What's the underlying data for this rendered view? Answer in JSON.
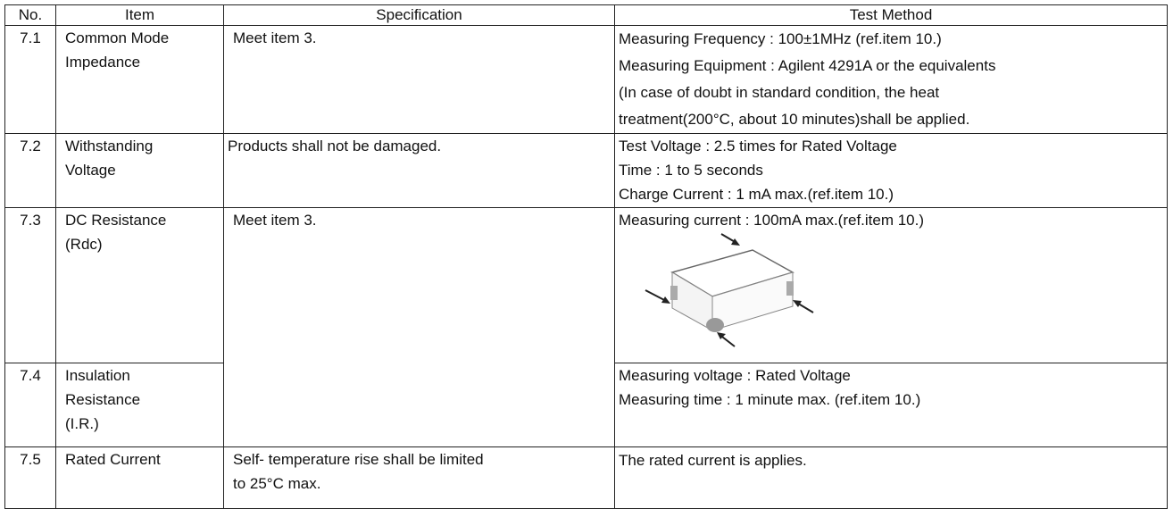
{
  "table": {
    "header": [
      "No.",
      "Item",
      "Specification",
      "Test Method"
    ],
    "rows": [
      {
        "no": "7.1",
        "item": [
          "Common Mode",
          "Impedance"
        ],
        "specification": [
          "Meet item 3."
        ],
        "method": [
          "Measuring Frequency : 100±1MHz    (ref.item 10.)",
          "Measuring Equipment : Agilent 4291A or the equivalents",
          "(In case of doubt in standard condition, the heat",
          "treatment(200°C, about 10 minutes)shall be applied."
        ]
      },
      {
        "no": "7.2",
        "item": [
          "Withstanding",
          "Voltage"
        ],
        "specification": [
          "Products shall not be damaged."
        ],
        "method": [
          "Test Voltage : 2.5 times for Rated Voltage",
          "Time : 1 to 5 seconds",
          "Charge Current : 1 mA max.(ref.item 10.)"
        ]
      },
      {
        "no": "7.3",
        "item": [
          "DC Resistance",
          "(Rdc)"
        ],
        "specification": [
          "Meet item 3."
        ],
        "method": [
          "Measuring current : 100mA max.(ref.item 10.)"
        ]
      },
      {
        "no": "7.4",
        "item": [
          "Insulation",
          "Resistance",
          "(I.R.)"
        ],
        "method": [
          "Measuring voltage : Rated Voltage",
          "Measuring time : 1 minute max. (ref.item 10.)"
        ]
      },
      {
        "no": "7.5",
        "item": [
          "Rated Current"
        ],
        "specification": [
          "Self- temperature rise shall be limited",
          "to 25°C  max."
        ],
        "method": [
          "The rated current is applies."
        ]
      }
    ]
  }
}
